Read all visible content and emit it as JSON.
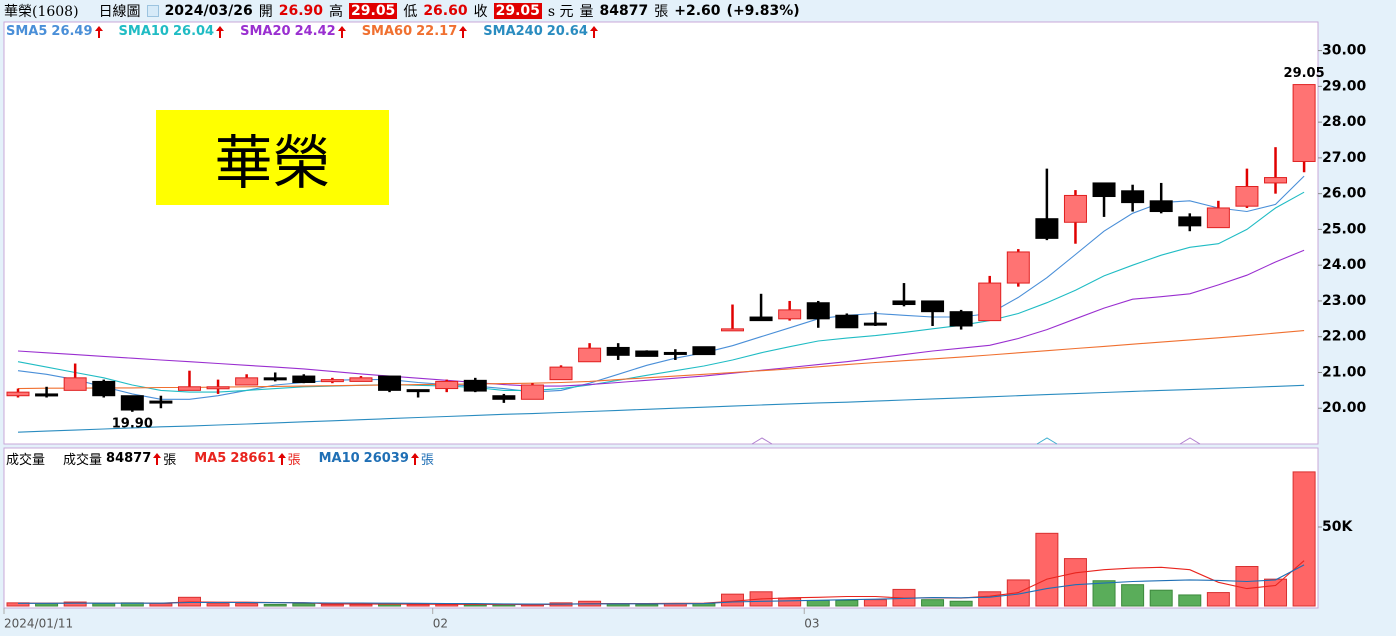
{
  "header": {
    "stock": "華榮(1608)",
    "period": "日線圖",
    "date": "2024/03/26",
    "fields": [
      {
        "label": "開",
        "value": "26.90"
      },
      {
        "label": "高",
        "value": "29.05"
      },
      {
        "label": "低",
        "value": "26.60"
      },
      {
        "label": "收",
        "value": "29.05"
      }
    ],
    "currency": "s 元",
    "volume_label": "量",
    "volume": "84877",
    "unit": "張",
    "change": "+2.60",
    "change_pct": "(+9.83%)"
  },
  "badge": "華榮",
  "chart_data": [
    {
      "type": "candlestick",
      "categories": [
        "2024/01/11",
        null,
        null,
        null,
        null,
        null,
        null,
        null,
        null,
        null,
        null,
        null,
        null,
        null,
        null,
        "02",
        null,
        null,
        null,
        null,
        null,
        null,
        null,
        null,
        null,
        null,
        null,
        null,
        "03",
        null,
        null,
        null,
        null,
        null,
        null,
        null,
        null,
        null,
        null,
        null,
        null,
        null,
        null,
        null,
        null,
        null
      ],
      "open": [
        20.35,
        20.4,
        20.5,
        20.75,
        20.35,
        20.2,
        20.5,
        20.55,
        20.65,
        20.85,
        20.9,
        20.75,
        20.75,
        20.9,
        20.52,
        20.55,
        20.78,
        20.35,
        20.25,
        20.8,
        21.3,
        21.7,
        21.6,
        21.56,
        21.72,
        22.18,
        22.55,
        22.5,
        22.95,
        22.6,
        22.38,
        23.0,
        23.0,
        22.7,
        22.45,
        23.5,
        25.3,
        25.2,
        26.3,
        26.08,
        25.8,
        25.35,
        25.05,
        25.65,
        26.3,
        26.9
      ],
      "high": [
        20.55,
        20.6,
        21.25,
        20.8,
        20.35,
        20.35,
        21.05,
        20.8,
        20.95,
        21.0,
        20.95,
        20.85,
        20.9,
        20.9,
        20.52,
        20.8,
        20.85,
        20.4,
        20.7,
        21.2,
        21.82,
        21.82,
        21.62,
        21.65,
        21.72,
        22.9,
        23.2,
        23.0,
        23.0,
        22.65,
        22.7,
        23.5,
        23.0,
        22.75,
        23.7,
        24.45,
        26.7,
        26.1,
        26.3,
        26.25,
        26.3,
        25.45,
        25.8,
        26.7,
        27.3,
        29.05
      ],
      "low": [
        20.3,
        20.3,
        20.5,
        20.3,
        19.9,
        20.0,
        20.5,
        20.4,
        20.65,
        20.75,
        20.7,
        20.7,
        20.75,
        20.45,
        20.3,
        20.45,
        20.45,
        20.15,
        20.25,
        20.8,
        21.3,
        21.35,
        21.45,
        21.35,
        21.5,
        22.18,
        22.45,
        22.45,
        22.25,
        22.25,
        22.3,
        22.85,
        22.3,
        22.2,
        22.45,
        23.4,
        24.7,
        24.6,
        25.35,
        25.5,
        25.45,
        24.95,
        25.05,
        25.6,
        26.0,
        26.6
      ],
      "close": [
        20.45,
        20.35,
        20.85,
        20.35,
        19.95,
        20.15,
        20.6,
        20.6,
        20.85,
        20.8,
        20.72,
        20.8,
        20.85,
        20.5,
        20.5,
        20.75,
        20.48,
        20.25,
        20.65,
        21.15,
        21.68,
        21.48,
        21.45,
        21.55,
        21.5,
        22.22,
        22.45,
        22.75,
        22.5,
        22.25,
        22.35,
        22.9,
        22.7,
        22.3,
        23.5,
        24.37,
        24.75,
        25.95,
        25.92,
        25.75,
        25.5,
        25.1,
        25.6,
        26.2,
        26.45,
        29.05
      ],
      "up_color": "#ff7373",
      "up_stroke": "#e02020",
      "down_color": "#000000",
      "ylim": [
        19,
        30.8
      ],
      "yticks": [
        {
          "value": 20,
          "label": "20.00"
        },
        {
          "value": 21,
          "label": "21.00"
        },
        {
          "value": 22,
          "label": "22.00"
        },
        {
          "value": 23,
          "label": "23.00"
        },
        {
          "value": 24,
          "label": "24.00"
        },
        {
          "value": 25,
          "label": "25.00"
        },
        {
          "value": 26,
          "label": "26.00"
        },
        {
          "value": 27,
          "label": "27.00"
        },
        {
          "value": 28,
          "label": "28.00"
        },
        {
          "value": 29,
          "label": "29.00"
        },
        {
          "value": 30,
          "label": "30.00"
        }
      ],
      "high_label": "29.05",
      "low_label": "19.90",
      "series": [
        {
          "name": "SMA5",
          "color": "#4a8fd8",
          "values": [
            21.05,
            20.95,
            20.8,
            20.6,
            20.4,
            20.25,
            20.25,
            20.35,
            20.5,
            20.65,
            20.72,
            20.78,
            20.8,
            20.8,
            20.72,
            20.66,
            20.62,
            20.55,
            20.45,
            20.5,
            20.7,
            20.95,
            21.2,
            21.4,
            21.55,
            21.75,
            22.0,
            22.25,
            22.5,
            22.6,
            22.65,
            22.6,
            22.55,
            22.55,
            22.65,
            23.1,
            23.65,
            24.3,
            24.95,
            25.45,
            25.75,
            25.8,
            25.6,
            25.5,
            25.7,
            26.49
          ]
        },
        {
          "name": "SMA10",
          "color": "#20bcc4",
          "values": [
            21.3,
            21.15,
            21.0,
            20.85,
            20.65,
            20.5,
            20.45,
            20.45,
            20.5,
            20.55,
            20.6,
            20.62,
            20.64,
            20.66,
            20.64,
            20.62,
            20.58,
            20.5,
            20.5,
            20.55,
            20.65,
            20.78,
            20.92,
            21.05,
            21.18,
            21.35,
            21.55,
            21.72,
            21.88,
            21.96,
            22.03,
            22.12,
            22.22,
            22.32,
            22.45,
            22.65,
            22.95,
            23.3,
            23.7,
            24.0,
            24.28,
            24.5,
            24.6,
            25.0,
            25.6,
            26.04
          ]
        },
        {
          "name": "SMA20",
          "color": "#9a2fd0",
          "values": [
            21.6,
            21.55,
            21.5,
            21.45,
            21.4,
            21.35,
            21.3,
            21.25,
            21.2,
            21.15,
            21.1,
            21.03,
            20.96,
            20.9,
            20.84,
            20.78,
            20.72,
            20.66,
            20.62,
            20.62,
            20.66,
            20.72,
            20.78,
            20.84,
            20.9,
            20.98,
            21.06,
            21.14,
            21.22,
            21.3,
            21.4,
            21.5,
            21.6,
            21.68,
            21.76,
            21.95,
            22.2,
            22.5,
            22.8,
            23.05,
            23.12,
            23.2,
            23.45,
            23.72,
            24.09,
            24.42
          ]
        },
        {
          "name": "SMA60",
          "color": "#f07030",
          "values": [
            20.55,
            20.56,
            20.56,
            20.57,
            20.57,
            20.58,
            20.58,
            20.59,
            20.6,
            20.61,
            20.62,
            20.63,
            20.64,
            20.65,
            20.66,
            20.67,
            20.68,
            20.69,
            20.7,
            20.72,
            20.75,
            20.8,
            20.85,
            20.9,
            20.95,
            21.0,
            21.05,
            21.1,
            21.16,
            21.22,
            21.28,
            21.33,
            21.38,
            21.43,
            21.49,
            21.55,
            21.61,
            21.67,
            21.73,
            21.79,
            21.85,
            21.91,
            21.97,
            22.03,
            22.1,
            22.17
          ]
        },
        {
          "name": "SMA240",
          "color": "#2a8cc0",
          "values": [
            19.33,
            19.36,
            19.39,
            19.42,
            19.45,
            19.48,
            19.5,
            19.53,
            19.56,
            19.59,
            19.62,
            19.65,
            19.68,
            19.71,
            19.74,
            19.77,
            19.8,
            19.83,
            19.85,
            19.88,
            19.91,
            19.94,
            19.97,
            20.0,
            20.03,
            20.06,
            20.09,
            20.12,
            20.15,
            20.17,
            20.2,
            20.23,
            20.26,
            20.29,
            20.32,
            20.35,
            20.38,
            20.41,
            20.44,
            20.47,
            20.5,
            20.52,
            20.55,
            20.58,
            20.61,
            20.64
          ]
        }
      ]
    },
    {
      "type": "bar",
      "title": "成交量",
      "values_name": "成交量",
      "unit": "張",
      "values": [
        2000,
        1500,
        2500,
        1500,
        2000,
        1500,
        5500,
        1500,
        1500,
        1000,
        1500,
        1000,
        1000,
        1500,
        1000,
        1000,
        800,
        800,
        800,
        2000,
        3000,
        1200,
        1000,
        1500,
        1500,
        7500,
        9000,
        5000,
        3500,
        3500,
        4000,
        10500,
        4000,
        3000,
        9000,
        16500,
        46000,
        30000,
        16000,
        13500,
        10000,
        7000,
        8500,
        25000,
        17000,
        84877
      ],
      "up_color": "#ff6666",
      "up_stroke": "#d83030",
      "down_color": "#5aad5a",
      "down_stroke": "#3d8a3d",
      "ylim": [
        0,
        100000
      ],
      "yticks": [
        {
          "value": 50000,
          "label": "50K"
        }
      ],
      "series": [
        {
          "name": "MA5",
          "color": "#e8241e",
          "values": [
            1800,
            1800,
            1900,
            1900,
            1900,
            1800,
            2600,
            2400,
            2400,
            2200,
            2100,
            1300,
            1300,
            1200,
            1200,
            1100,
            1100,
            1000,
            900,
            1100,
            1500,
            1600,
            1600,
            1700,
            1800,
            3000,
            4500,
            5200,
            5500,
            6000,
            6000,
            5000,
            5200,
            5000,
            6200,
            8500,
            17000,
            21000,
            23000,
            24000,
            24500,
            23000,
            15000,
            11000,
            13000,
            28661
          ]
        },
        {
          "name": "MA10",
          "color": "#1f6fb5",
          "values": [
            1700,
            1700,
            1800,
            1800,
            1800,
            1800,
            2200,
            2200,
            2200,
            2100,
            2000,
            1900,
            1900,
            1800,
            1700,
            1600,
            1500,
            1300,
            1200,
            1200,
            1300,
            1400,
            1400,
            1400,
            1500,
            2500,
            3000,
            3300,
            3600,
            4000,
            4300,
            4800,
            5300,
            5200,
            5600,
            7500,
            11000,
            13500,
            14500,
            15500,
            16000,
            16500,
            16200,
            15500,
            16500,
            26039
          ]
        }
      ]
    }
  ]
}
